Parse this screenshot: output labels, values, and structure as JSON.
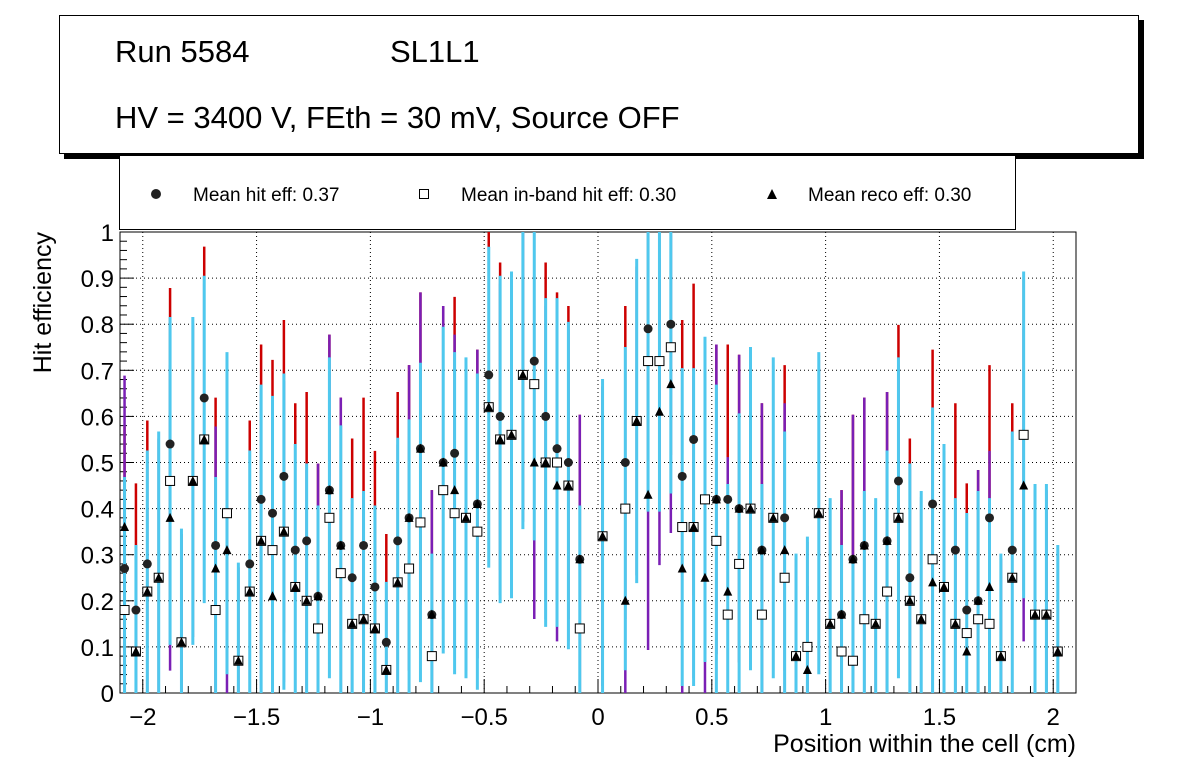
{
  "header": {
    "run_label": "Run 5584",
    "layer_label": "SL1L1",
    "conditions": "HV = 3400 V, FEth = 30 mV, Source OFF"
  },
  "legend": {
    "items": [
      {
        "label": "Mean hit  eff: 0.37",
        "marker": "circle"
      },
      {
        "label": "Mean in-band hit eff: 0.30",
        "marker": "open-square"
      },
      {
        "label": "Mean reco eff: 0.30",
        "marker": "triangle"
      }
    ]
  },
  "colors": {
    "hit_error": "#cc0000",
    "inband_error": "#4fc8ee",
    "reco_error": "#7a1fb5",
    "grid": "#000000"
  },
  "chart_data": {
    "type": "scatter",
    "title": "",
    "xlabel": "Position within the cell (cm)",
    "ylabel": "Hit efficiency",
    "xlim": [
      -2.1,
      2.1
    ],
    "ylim": [
      0,
      1
    ],
    "xticks": [
      -2,
      -1.5,
      -1,
      -0.5,
      0,
      0.5,
      1,
      1.5,
      2
    ],
    "xtick_labels": [
      "−2",
      "−1.5",
      "−1",
      "−0.5",
      "0",
      "0.5",
      "1",
      "1.5",
      "2"
    ],
    "yticks": [
      0,
      0.1,
      0.2,
      0.3,
      0.4,
      0.5,
      0.6,
      0.7,
      0.8,
      0.9,
      1
    ],
    "ytick_labels": [
      "0",
      "0.1",
      "0.2",
      "0.3",
      "0.4",
      "0.5",
      "0.6",
      "0.7",
      "0.8",
      "0.9",
      "1"
    ],
    "grid": true,
    "x": [
      -2.08,
      -2.03,
      -1.98,
      -1.93,
      -1.88,
      -1.83,
      -1.78,
      -1.73,
      -1.68,
      -1.63,
      -1.58,
      -1.53,
      -1.48,
      -1.43,
      -1.38,
      -1.33,
      -1.28,
      -1.23,
      -1.18,
      -1.13,
      -1.08,
      -1.03,
      -0.98,
      -0.93,
      -0.88,
      -0.83,
      -0.78,
      -0.73,
      -0.68,
      -0.63,
      -0.58,
      -0.53,
      -0.48,
      -0.43,
      -0.38,
      -0.33,
      -0.28,
      -0.23,
      -0.18,
      -0.13,
      -0.08,
      0.02,
      0.12,
      0.17,
      0.22,
      0.27,
      0.32,
      0.37,
      0.42,
      0.47,
      0.52,
      0.57,
      0.62,
      0.67,
      0.72,
      0.77,
      0.82,
      0.87,
      0.92,
      0.97,
      1.02,
      1.07,
      1.12,
      1.17,
      1.22,
      1.27,
      1.32,
      1.37,
      1.42,
      1.47,
      1.52,
      1.57,
      1.62,
      1.67,
      1.72,
      1.77,
      1.82,
      1.87,
      1.92,
      1.97,
      2.02
    ],
    "series": [
      {
        "name": "Mean hit  eff: 0.37",
        "marker": "circle",
        "error_color": "#cc0000",
        "values": [
          0.27,
          0.18,
          0.28,
          0.25,
          0.54,
          0.11,
          0.46,
          0.64,
          0.32,
          0.39,
          0.07,
          0.28,
          0.42,
          0.39,
          0.47,
          0.31,
          0.33,
          0.21,
          0.44,
          0.32,
          0.25,
          0.32,
          0.23,
          0.11,
          0.33,
          0.38,
          0.53,
          0.17,
          0.5,
          0.52,
          0.38,
          0.41,
          0.69,
          0.6,
          0.56,
          0.69,
          0.72,
          0.6,
          0.53,
          0.5,
          0.29,
          0.34,
          0.5,
          0.59,
          0.79,
          0.72,
          0.8,
          0.47,
          0.55,
          0.42,
          0.42,
          0.42,
          0.4,
          0.4,
          0.31,
          0.38,
          0.38,
          0.08,
          0.1,
          0.39,
          0.15,
          0.17,
          0.29,
          0.32,
          0.15,
          0.33,
          0.46,
          0.25,
          0.16,
          0.41,
          0.23,
          0.31,
          0.18,
          0.2,
          0.38,
          0.08,
          0.31,
          0.56,
          0.17,
          0.17,
          0.09
        ]
      },
      {
        "name": "Mean in-band hit eff: 0.30",
        "marker": "open-square",
        "error_color": "#4fc8ee",
        "values": [
          0.18,
          0.09,
          0.22,
          0.25,
          0.46,
          0.11,
          0.46,
          0.55,
          0.18,
          0.39,
          0.07,
          0.22,
          0.33,
          0.31,
          0.35,
          0.23,
          0.2,
          0.14,
          0.38,
          0.26,
          0.15,
          0.16,
          0.14,
          0.05,
          0.24,
          0.27,
          0.37,
          0.08,
          0.44,
          0.39,
          0.38,
          0.35,
          0.62,
          0.55,
          0.56,
          0.69,
          0.67,
          0.5,
          0.5,
          0.45,
          0.14,
          0.34,
          0.4,
          0.59,
          0.72,
          0.72,
          0.75,
          0.36,
          0.36,
          0.42,
          0.33,
          0.17,
          0.28,
          0.4,
          0.17,
          0.38,
          0.25,
          0.08,
          0.1,
          0.39,
          0.15,
          0.09,
          0.07,
          0.16,
          0.15,
          0.22,
          0.38,
          0.2,
          0.16,
          0.29,
          0.23,
          0.15,
          0.13,
          0.16,
          0.15,
          0.08,
          0.25,
          0.56,
          0.17,
          0.17,
          0.09
        ]
      },
      {
        "name": "Mean reco eff: 0.30",
        "marker": "triangle",
        "error_color": "#7a1fb5",
        "values": [
          0.36,
          0.09,
          0.22,
          0.25,
          0.38,
          0.11,
          0.46,
          0.55,
          0.27,
          0.31,
          0.07,
          0.22,
          0.33,
          0.21,
          0.35,
          0.23,
          0.2,
          0.21,
          0.44,
          0.32,
          0.15,
          0.16,
          0.14,
          0.05,
          0.24,
          0.38,
          0.53,
          0.17,
          0.5,
          0.44,
          0.38,
          0.41,
          0.62,
          0.55,
          0.56,
          0.69,
          0.5,
          0.5,
          0.45,
          0.45,
          0.29,
          0.34,
          0.2,
          0.59,
          0.43,
          0.61,
          0.67,
          0.27,
          0.36,
          0.25,
          0.42,
          0.22,
          0.4,
          0.4,
          0.31,
          0.38,
          0.31,
          0.08,
          0.05,
          0.39,
          0.15,
          0.17,
          0.29,
          0.32,
          0.15,
          0.33,
          0.38,
          0.2,
          0.16,
          0.24,
          0.23,
          0.15,
          0.09,
          0.2,
          0.23,
          0.08,
          0.25,
          0.45,
          0.17,
          0.17,
          0.09
        ]
      }
    ]
  }
}
